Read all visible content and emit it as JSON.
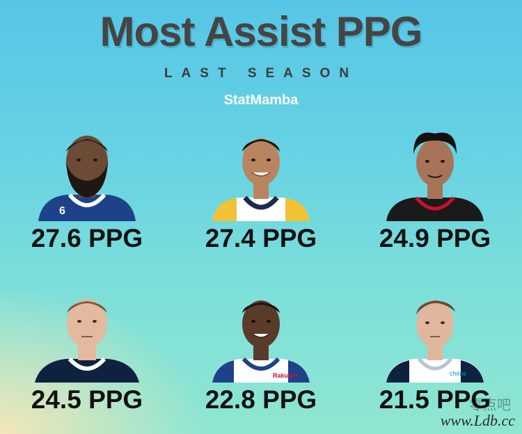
{
  "header": {
    "title": "Most Assist PPG",
    "subtitle": "LAST SEASON",
    "brand": "StatMamba"
  },
  "players": [
    {
      "ppg": "27.6 PPG",
      "jersey": "#1d428a",
      "trim": "#ffffff",
      "skin": "#6b4a36",
      "hair": "#1f1712",
      "beard": true,
      "number": "6"
    },
    {
      "ppg": "27.4 PPG",
      "jersey": "#ffffff",
      "trim": "#f1c236",
      "skin": "#b98560",
      "hair": "#1b140f",
      "beard": false
    },
    {
      "ppg": "24.9 PPG",
      "jersey": "#1a1a1a",
      "trim": "#c8102e",
      "skin": "#a87457",
      "hair": "#141010",
      "beard": false
    },
    {
      "ppg": "24.5 PPG",
      "jersey": "#0e2240",
      "trim": "#fec524",
      "skin": "#e3b9a0",
      "hair": "#7a5a40",
      "beard": false
    },
    {
      "ppg": "22.8 PPG",
      "jersey": "#ffffff",
      "trim": "#1d428a",
      "skin": "#5a3b2a",
      "hair": "#1a1210",
      "beard": false
    },
    {
      "ppg": "21.5 PPG",
      "jersey": "#ffffff",
      "trim": "#00538c",
      "skin": "#e0b69e",
      "hair": "#6d4a32",
      "beard": false
    }
  ],
  "watermark": {
    "text": "www.Ldb.cc",
    "icon": "watermark-glyph"
  }
}
